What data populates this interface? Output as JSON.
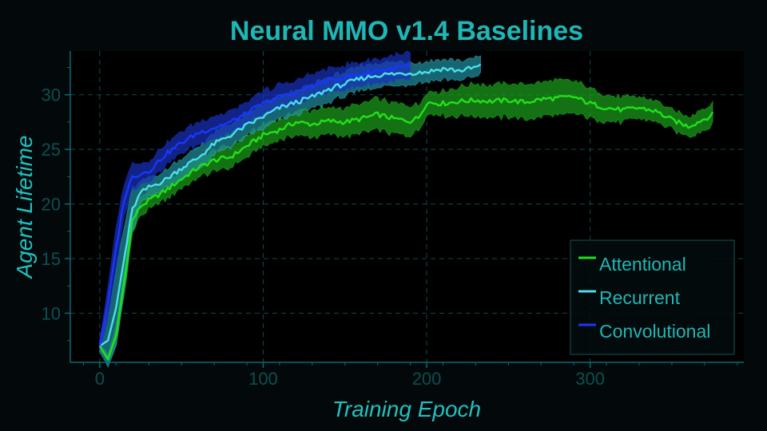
{
  "chart_data": {
    "type": "line",
    "title": "Neural MMO v1.4 Baselines",
    "xlabel": "Training Epoch",
    "ylabel": "Agent Lifetime",
    "xlim": [
      -18,
      394
    ],
    "ylim": [
      5.5,
      34
    ],
    "xticks": [
      0,
      100,
      200,
      300
    ],
    "yticks": [
      10,
      15,
      20,
      25,
      30
    ],
    "grid": true,
    "legend_position": "lower-right",
    "series": [
      {
        "name": "Attentional",
        "color": "#22e11a",
        "band_color": "#1c9e1c",
        "x": [
          0,
          5,
          10,
          15,
          20,
          25,
          30,
          40,
          50,
          60,
          70,
          80,
          90,
          100,
          110,
          120,
          130,
          140,
          150,
          160,
          170,
          180,
          190,
          195,
          200,
          210,
          220,
          230,
          240,
          250,
          260,
          270,
          280,
          290,
          300,
          310,
          320,
          330,
          340,
          350,
          360,
          370,
          375
        ],
        "y": [
          7.0,
          5.8,
          8.0,
          13.0,
          18.5,
          19.8,
          20.3,
          21.2,
          22.3,
          23.3,
          24.0,
          24.3,
          25.3,
          26.3,
          26.8,
          27.5,
          27.3,
          27.6,
          27.5,
          27.8,
          28.2,
          27.8,
          27.6,
          27.9,
          29.3,
          29.2,
          29.4,
          29.5,
          29.4,
          29.5,
          29.3,
          29.6,
          29.7,
          29.8,
          29.2,
          28.8,
          28.6,
          28.8,
          28.5,
          27.7,
          27.1,
          27.8,
          28.2
        ],
        "band": [
          0.3,
          0.4,
          0.9,
          1.2,
          1.1,
          0.9,
          0.8,
          0.8,
          0.8,
          0.9,
          1.0,
          1.0,
          1.0,
          1.0,
          1.0,
          1.1,
          1.2,
          1.2,
          1.3,
          1.4,
          1.4,
          1.4,
          1.4,
          1.2,
          1.0,
          1.1,
          1.3,
          1.5,
          1.5,
          1.5,
          1.6,
          1.6,
          1.6,
          1.5,
          1.4,
          1.2,
          1.1,
          1.0,
          1.0,
          0.9,
          0.9,
          1.0,
          1.0
        ]
      },
      {
        "name": "Recurrent",
        "color": "#4ae0ea",
        "band_color": "#208c9c",
        "x": [
          0,
          5,
          10,
          15,
          20,
          25,
          30,
          40,
          50,
          60,
          70,
          80,
          90,
          100,
          110,
          120,
          130,
          140,
          150,
          160,
          170,
          180,
          190,
          200,
          210,
          220,
          230,
          233
        ],
        "y": [
          7.0,
          7.5,
          10.5,
          15.0,
          19.5,
          21.0,
          21.5,
          22.2,
          23.3,
          24.2,
          25.5,
          26.3,
          27.2,
          28.0,
          28.8,
          29.3,
          29.8,
          30.5,
          31.0,
          31.5,
          31.8,
          31.9,
          32.0,
          32.1,
          32.4,
          32.2,
          32.5,
          32.7
        ],
        "band": [
          0.5,
          2.5,
          3.5,
          3.0,
          2.0,
          1.0,
          0.8,
          0.8,
          0.9,
          1.0,
          1.0,
          1.0,
          1.0,
          1.1,
          1.1,
          1.1,
          1.1,
          1.1,
          1.1,
          1.1,
          1.1,
          1.1,
          1.0,
          0.9,
          0.9,
          0.9,
          0.9,
          0.8
        ]
      },
      {
        "name": "Convolutional",
        "color": "#1a36ff",
        "band_color": "#1830b8",
        "x": [
          0,
          5,
          10,
          15,
          20,
          25,
          30,
          40,
          50,
          60,
          70,
          80,
          90,
          100,
          110,
          120,
          130,
          140,
          150,
          160,
          170,
          180,
          190
        ],
        "y": [
          7.0,
          11.0,
          16.0,
          20.5,
          22.5,
          22.8,
          23.0,
          24.5,
          25.6,
          26.5,
          27.0,
          27.5,
          28.3,
          29.2,
          29.8,
          30.2,
          30.8,
          31.3,
          31.6,
          31.9,
          32.2,
          32.4,
          32.6
        ],
        "band": [
          0.5,
          1.5,
          2.0,
          1.5,
          1.2,
          1.0,
          1.0,
          1.0,
          1.0,
          1.0,
          1.0,
          1.0,
          1.0,
          1.1,
          1.1,
          1.1,
          1.1,
          1.1,
          1.1,
          1.1,
          1.1,
          1.2,
          1.2
        ]
      }
    ]
  },
  "colors": {
    "background": "#03090a",
    "plot_background": "#000000",
    "text": "#1fb7b6",
    "axis_label": "#20c1c0",
    "tick_text": "#0c4f52",
    "axis_line": "#0a6a6e",
    "grid": "#114a4e",
    "legend_border": "#155357",
    "legend_fill": "#020c0d"
  }
}
